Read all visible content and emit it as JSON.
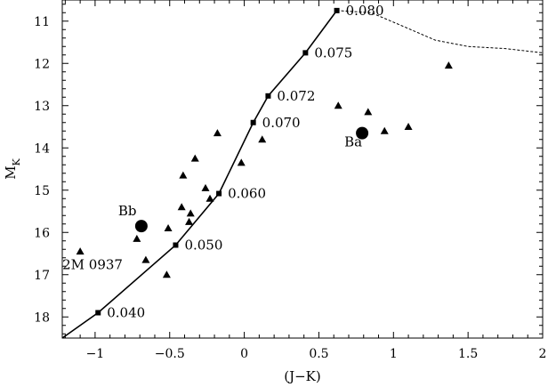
{
  "chart_data": {
    "type": "scatter",
    "xlabel": "(J−K)",
    "ylabel": "M",
    "ylabel_sub": "K",
    "xlim": [
      -1.22,
      2.0
    ],
    "ylim": [
      18.5,
      10.5
    ],
    "y_inverted": true,
    "xticks": [
      -1,
      -0.5,
      0,
      0.5,
      1,
      1.5,
      2
    ],
    "xtick_labels": [
      "−1",
      "−0.5",
      "0",
      "0.5",
      "1",
      "1.5",
      "2"
    ],
    "yticks": [
      11,
      12,
      13,
      14,
      15,
      16,
      17,
      18
    ],
    "ytick_labels": [
      "11",
      "12",
      "13",
      "14",
      "15",
      "16",
      "17",
      "18"
    ],
    "grid": false,
    "model_track": {
      "x": [
        -1.22,
        -0.98,
        -0.46,
        -0.17,
        0.06,
        0.16,
        0.41,
        0.62
      ],
      "y": [
        18.5,
        17.9,
        16.3,
        15.08,
        13.4,
        12.77,
        11.75,
        10.75
      ]
    },
    "mass_markers": [
      {
        "x": -0.98,
        "y": 17.9,
        "label": "0.040"
      },
      {
        "x": -0.46,
        "y": 16.3,
        "label": "0.050"
      },
      {
        "x": -0.17,
        "y": 15.08,
        "label": "0.060"
      },
      {
        "x": 0.06,
        "y": 13.4,
        "label": "0.070"
      },
      {
        "x": 0.16,
        "y": 12.77,
        "label": "0.072"
      },
      {
        "x": 0.41,
        "y": 11.75,
        "label": "0.075"
      },
      {
        "x": 0.62,
        "y": 10.75,
        "label": "0.080"
      }
    ],
    "dashed_track": {
      "x": [
        0.62,
        0.85,
        1.05,
        1.28,
        1.5,
        1.75,
        2.0
      ],
      "y": [
        10.75,
        10.8,
        11.1,
        11.45,
        11.6,
        11.65,
        11.75
      ]
    },
    "field_objects": {
      "marker": "triangle",
      "x": [
        -1.1,
        -0.72,
        -0.66,
        -0.52,
        -0.51,
        -0.42,
        -0.41,
        -0.37,
        -0.36,
        -0.33,
        -0.26,
        -0.23,
        -0.18,
        -0.02,
        0.12,
        0.63,
        0.83,
        0.94,
        1.1,
        1.37
      ],
      "y": [
        16.45,
        16.15,
        16.65,
        17.0,
        15.9,
        15.4,
        14.65,
        15.75,
        15.55,
        14.25,
        14.95,
        15.2,
        13.65,
        14.35,
        13.8,
        13.0,
        13.15,
        13.6,
        13.5,
        12.05
      ]
    },
    "named_objects": [
      {
        "name": "Bb",
        "x": -0.69,
        "y": 15.85
      },
      {
        "name": "Ba",
        "x": 0.79,
        "y": 13.65
      }
    ],
    "annotations": [
      {
        "text": "2M 0937",
        "x": -1.1,
        "y": 16.45
      }
    ]
  }
}
